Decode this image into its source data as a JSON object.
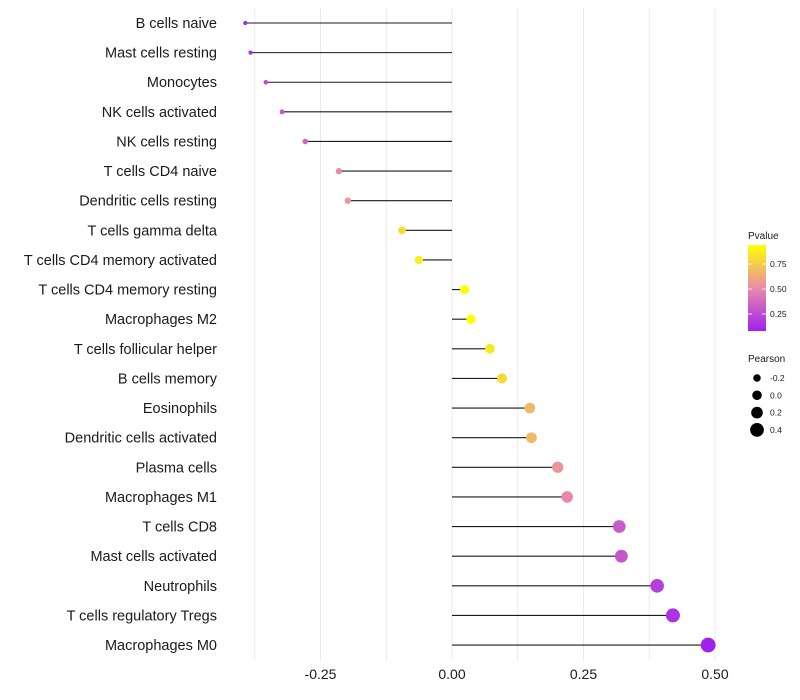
{
  "chart_data": {
    "type": "lollipop",
    "title": "",
    "xlabel": "",
    "ylabel": "",
    "xlim": [
      -0.45,
      0.52
    ],
    "x_ticks": [
      -0.25,
      0.0,
      0.25,
      0.5
    ],
    "x_tick_labels": [
      "-0.25",
      "0.00",
      "0.25",
      "0.50"
    ],
    "grid": true,
    "categories": [
      "B cells naive",
      "Mast cells resting",
      "Monocytes",
      "NK cells activated",
      "NK cells resting",
      "T cells CD4 naive",
      "Dendritic cells resting",
      "T cells gamma delta",
      "T cells CD4 memory activated",
      "T cells CD4 memory resting",
      "Macrophages M2",
      "T cells follicular helper",
      "B cells memory",
      "Eosinophils",
      "Dendritic cells activated",
      "Plasma cells",
      "Macrophages M1",
      "T cells CD8",
      "Mast cells activated",
      "Neutrophils",
      "T cells regulatory  Tregs",
      "Macrophages M0"
    ],
    "pearson": [
      -0.393,
      -0.383,
      -0.354,
      -0.323,
      -0.279,
      -0.215,
      -0.198,
      -0.095,
      -0.063,
      0.024,
      0.036,
      0.072,
      0.095,
      0.148,
      0.151,
      0.201,
      0.219,
      0.318,
      0.322,
      0.39,
      0.42,
      0.487
    ],
    "pvalue": [
      0.1,
      0.15,
      0.25,
      0.3,
      0.35,
      0.5,
      0.55,
      0.8,
      0.88,
      0.95,
      0.95,
      0.85,
      0.8,
      0.68,
      0.68,
      0.55,
      0.5,
      0.32,
      0.3,
      0.2,
      0.15,
      0.08
    ],
    "legend": {
      "color": {
        "title": "Pvalue",
        "range": [
          0.08,
          0.94
        ],
        "ticks": [
          0.25,
          0.5,
          0.75
        ],
        "tick_labels": [
          "0.25",
          "0.50",
          "0.75"
        ],
        "low_color": "#a020f0",
        "high_color": "#ffff00",
        "placement": "right"
      },
      "size": {
        "title": "Pearson",
        "values": [
          -0.2,
          0.0,
          0.2,
          0.4
        ],
        "labels": [
          "-0.2",
          "0.0",
          "0.2",
          "0.4"
        ],
        "placement": "right"
      }
    }
  }
}
